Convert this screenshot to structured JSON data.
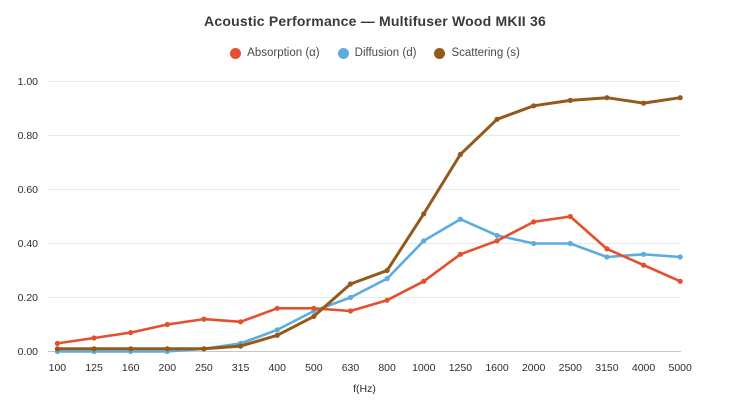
{
  "title": "Acoustic Performance — Multifuser Wood MKII 36",
  "colors": {
    "background": "#ffffff",
    "title_text": "#3a3a3a",
    "legend_text": "#4a4a4a",
    "tick_text": "#2d2d2d",
    "gridline": "#e9e9e9",
    "axis_line": "#c6c6c6",
    "absorption": "#e4502e",
    "diffusion": "#5cacdd",
    "scattering": "#955a1b"
  },
  "chart_data": {
    "type": "line",
    "title": "Acoustic Performance — Multifuser Wood MKII 36",
    "xlabel": "f(Hz)",
    "ylabel": "",
    "categories": [
      "100",
      "125",
      "160",
      "200",
      "250",
      "315",
      "400",
      "500",
      "630",
      "800",
      "1000",
      "1250",
      "1600",
      "2000",
      "2500",
      "3150",
      "4000",
      "5000"
    ],
    "y_ticks": [
      "1.00",
      "0.80",
      "0.60",
      "0.40",
      "0.20",
      "0.00"
    ],
    "ylim": [
      0.0,
      1.0
    ],
    "grid": "horizontal",
    "legend_position": "top-center",
    "markers": true,
    "series": [
      {
        "name": "Absorption (α)",
        "color": "#e4502e",
        "values": [
          0.03,
          0.05,
          0.07,
          0.1,
          0.12,
          0.11,
          0.16,
          0.16,
          0.15,
          0.19,
          0.26,
          0.36,
          0.41,
          0.48,
          0.5,
          0.38,
          0.32,
          0.26
        ]
      },
      {
        "name": "Diffusion (d)",
        "color": "#5cacdd",
        "values": [
          0.0,
          0.0,
          0.0,
          0.0,
          0.01,
          0.03,
          0.08,
          0.15,
          0.2,
          0.27,
          0.41,
          0.49,
          0.43,
          0.4,
          0.4,
          0.35,
          0.36,
          0.35
        ]
      },
      {
        "name": "Scattering (s)",
        "color": "#955a1b",
        "values": [
          0.01,
          0.01,
          0.01,
          0.01,
          0.01,
          0.02,
          0.06,
          0.13,
          0.25,
          0.3,
          0.51,
          0.73,
          0.86,
          0.91,
          0.93,
          0.94,
          0.92,
          0.94
        ]
      }
    ]
  }
}
